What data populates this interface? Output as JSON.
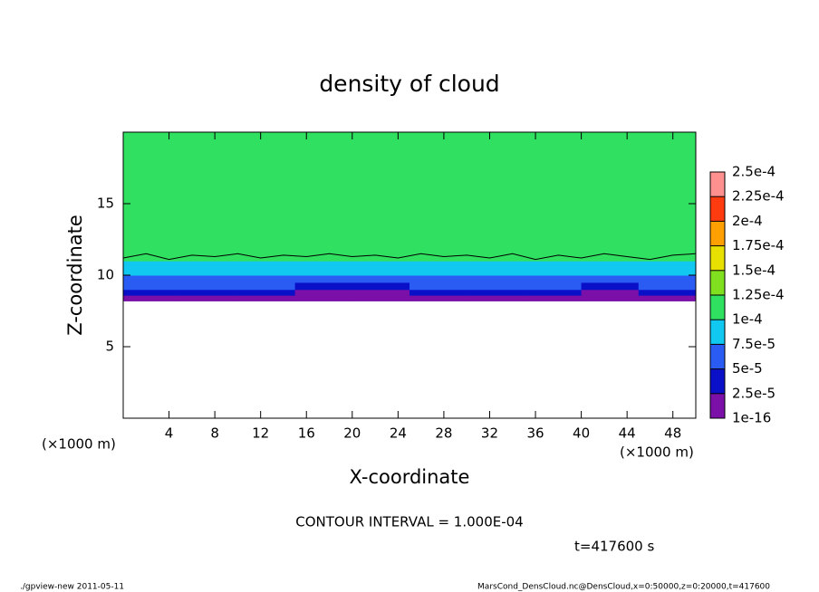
{
  "chart_data": {
    "type": "heatmap",
    "title": "density of cloud",
    "x_label": "X-coordinate",
    "y_label": "Z-coordinate",
    "x_unit": "(×1000 m)",
    "x_unit_right": "(×1000 m)",
    "annotation": "CONTOUR INTERVAL = 1.000E-04",
    "time_label": "t=417600 s",
    "footer_left": "./gpview-new   2011-05-11",
    "footer_right": "MarsCond_DensCloud.nc@DensCloud,x=0:50000,z=0:20000,t=417600",
    "xlim": [
      0,
      50
    ],
    "ylim": [
      0,
      20
    ],
    "xticks": [
      4,
      8,
      12,
      16,
      20,
      24,
      28,
      32,
      36,
      40,
      44,
      48
    ],
    "yticks": [
      5,
      10,
      15
    ],
    "x_edges": [
      0,
      5,
      10,
      15,
      20,
      25,
      30,
      35,
      40,
      45,
      50
    ],
    "y_edges": [
      8.2,
      8.6,
      9,
      9.5,
      10,
      10.5,
      11,
      12,
      14,
      17,
      20
    ],
    "z": [
      [
        1e-05,
        1e-05,
        1e-05,
        1e-05,
        1e-05,
        1e-05,
        1e-05,
        1e-05,
        1e-05,
        1e-05
      ],
      [
        4e-05,
        4e-05,
        4e-05,
        1e-05,
        1e-05,
        4e-05,
        4e-05,
        4e-05,
        1e-05,
        4e-05
      ],
      [
        6e-05,
        6e-05,
        6e-05,
        4e-05,
        4e-05,
        6e-05,
        6e-05,
        6e-05,
        4e-05,
        6e-05
      ],
      [
        6e-05,
        6e-05,
        6e-05,
        6e-05,
        6e-05,
        6e-05,
        6e-05,
        6e-05,
        6e-05,
        6e-05
      ],
      [
        8e-05,
        8e-05,
        8e-05,
        8e-05,
        8e-05,
        8e-05,
        8e-05,
        8e-05,
        8e-05,
        8e-05
      ],
      [
        9e-05,
        9e-05,
        9e-05,
        9e-05,
        9e-05,
        9e-05,
        9e-05,
        9e-05,
        9e-05,
        9e-05
      ],
      [
        0.000105,
        0.000105,
        0.000105,
        0.000105,
        0.000105,
        0.000105,
        0.000105,
        0.000105,
        0.000105,
        0.000105
      ],
      [
        0.00011,
        0.00011,
        0.00011,
        0.00011,
        0.00011,
        0.00011,
        0.00011,
        0.00011,
        0.00011,
        0.00011
      ],
      [
        0.000115,
        0.000115,
        0.000115,
        0.000115,
        0.000115,
        0.000115,
        0.000115,
        0.000115,
        0.000115,
        0.000115
      ],
      [
        0.00012,
        0.00012,
        0.00012,
        0.00012,
        0.00012,
        0.00012,
        0.00012,
        0.00012,
        0.00012,
        0.00012
      ]
    ],
    "contour": {
      "x": [
        0,
        2,
        4,
        6,
        8,
        10,
        12,
        14,
        16,
        18,
        20,
        22,
        24,
        26,
        28,
        30,
        32,
        34,
        36,
        38,
        40,
        42,
        44,
        46,
        48,
        50
      ],
      "y": [
        11.2,
        11.5,
        11.1,
        11.4,
        11.3,
        11.5,
        11.2,
        11.4,
        11.3,
        11.5,
        11.3,
        11.4,
        11.2,
        11.5,
        11.3,
        11.4,
        11.2,
        11.5,
        11.1,
        11.4,
        11.2,
        11.5,
        11.3,
        11.1,
        11.4,
        11.5
      ]
    },
    "levels": [
      {
        "value": 1e-16,
        "label": "1e-16"
      },
      {
        "value": 2.5e-05,
        "label": "2.5e-5"
      },
      {
        "value": 5e-05,
        "label": "5e-5"
      },
      {
        "value": 7.5e-05,
        "label": "7.5e-5"
      },
      {
        "value": 0.0001,
        "label": "1e-4"
      },
      {
        "value": 0.000125,
        "label": "1.25e-4"
      },
      {
        "value": 0.00015,
        "label": "1.5e-4"
      },
      {
        "value": 0.000175,
        "label": "1.75e-4"
      },
      {
        "value": 0.0002,
        "label": "2e-4"
      },
      {
        "value": 0.000225,
        "label": "2.25e-4"
      },
      {
        "value": 0.00025,
        "label": "2.5e-4"
      }
    ],
    "colors": [
      "#7a10a8",
      "#0a10c8",
      "#2a5cf4",
      "#10c8f0",
      "#30e060",
      "#80e020",
      "#e8e000",
      "#ffa000",
      "#ff3c10",
      "#ff9090"
    ]
  }
}
